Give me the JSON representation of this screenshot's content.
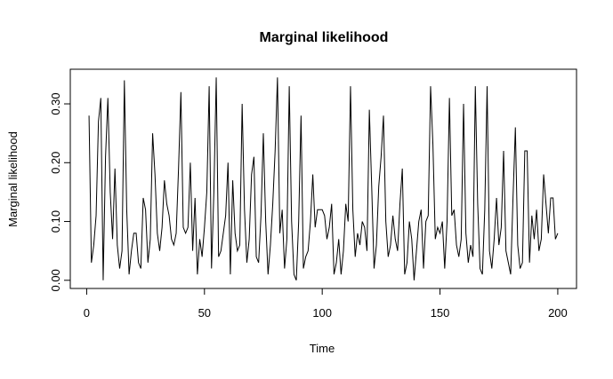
{
  "chart_data": {
    "type": "line",
    "title": "Marginal likelihood",
    "x_label": "Time",
    "y_label": "Marginal likelihood",
    "x": [
      1,
      2,
      3,
      4,
      5,
      6,
      7,
      8,
      9,
      10,
      11,
      12,
      13,
      14,
      15,
      16,
      17,
      18,
      19,
      20,
      21,
      22,
      23,
      24,
      25,
      26,
      27,
      28,
      29,
      30,
      31,
      32,
      33,
      34,
      35,
      36,
      37,
      38,
      39,
      40,
      41,
      42,
      43,
      44,
      45,
      46,
      47,
      48,
      49,
      50,
      51,
      52,
      53,
      54,
      55,
      56,
      57,
      58,
      59,
      60,
      61,
      62,
      63,
      64,
      65,
      66,
      67,
      68,
      69,
      70,
      71,
      72,
      73,
      74,
      75,
      76,
      77,
      78,
      79,
      80,
      81,
      82,
      83,
      84,
      85,
      86,
      87,
      88,
      89,
      90,
      91,
      92,
      93,
      94,
      95,
      96,
      97,
      98,
      99,
      100,
      101,
      102,
      103,
      104,
      105,
      106,
      107,
      108,
      109,
      110,
      111,
      112,
      113,
      114,
      115,
      116,
      117,
      118,
      119,
      120,
      121,
      122,
      123,
      124,
      125,
      126,
      127,
      128,
      129,
      130,
      131,
      132,
      133,
      134,
      135,
      136,
      137,
      138,
      139,
      140,
      141,
      142,
      143,
      144,
      145,
      146,
      147,
      148,
      149,
      150,
      151,
      152,
      153,
      154,
      155,
      156,
      157,
      158,
      159,
      160,
      161,
      162,
      163,
      164,
      165,
      166,
      167,
      168,
      169,
      170,
      171,
      172,
      173,
      174,
      175,
      176,
      177,
      178,
      179,
      180,
      181,
      182,
      183,
      184,
      185,
      186,
      187,
      188,
      189,
      190,
      191,
      192,
      193,
      194,
      195,
      196,
      197,
      198,
      199,
      200
    ],
    "values": [
      0.28,
      0.03,
      0.06,
      0.11,
      0.27,
      0.31,
      0.0,
      0.21,
      0.31,
      0.15,
      0.07,
      0.19,
      0.06,
      0.02,
      0.05,
      0.34,
      0.12,
      0.01,
      0.05,
      0.08,
      0.08,
      0.03,
      0.02,
      0.14,
      0.12,
      0.03,
      0.07,
      0.25,
      0.18,
      0.08,
      0.05,
      0.09,
      0.17,
      0.13,
      0.11,
      0.07,
      0.06,
      0.08,
      0.19,
      0.32,
      0.09,
      0.08,
      0.09,
      0.2,
      0.05,
      0.14,
      0.01,
      0.07,
      0.04,
      0.09,
      0.15,
      0.33,
      0.02,
      0.15,
      0.345,
      0.04,
      0.05,
      0.08,
      0.11,
      0.2,
      0.01,
      0.17,
      0.08,
      0.05,
      0.06,
      0.3,
      0.12,
      0.03,
      0.07,
      0.18,
      0.21,
      0.04,
      0.03,
      0.11,
      0.25,
      0.1,
      0.01,
      0.06,
      0.13,
      0.22,
      0.345,
      0.08,
      0.12,
      0.02,
      0.07,
      0.33,
      0.1,
      0.01,
      0.0,
      0.1,
      0.28,
      0.02,
      0.04,
      0.05,
      0.1,
      0.18,
      0.09,
      0.12,
      0.12,
      0.12,
      0.11,
      0.07,
      0.09,
      0.13,
      0.01,
      0.03,
      0.07,
      0.01,
      0.05,
      0.13,
      0.1,
      0.33,
      0.12,
      0.04,
      0.08,
      0.06,
      0.1,
      0.09,
      0.05,
      0.29,
      0.16,
      0.02,
      0.06,
      0.16,
      0.21,
      0.28,
      0.1,
      0.04,
      0.06,
      0.11,
      0.07,
      0.05,
      0.13,
      0.19,
      0.01,
      0.03,
      0.1,
      0.07,
      0.0,
      0.05,
      0.1,
      0.12,
      0.02,
      0.1,
      0.11,
      0.33,
      0.23,
      0.07,
      0.09,
      0.08,
      0.1,
      0.02,
      0.1,
      0.31,
      0.11,
      0.12,
      0.06,
      0.04,
      0.07,
      0.3,
      0.08,
      0.03,
      0.06,
      0.04,
      0.33,
      0.13,
      0.02,
      0.01,
      0.12,
      0.33,
      0.05,
      0.02,
      0.07,
      0.14,
      0.06,
      0.09,
      0.22,
      0.05,
      0.03,
      0.01,
      0.14,
      0.26,
      0.06,
      0.02,
      0.03,
      0.22,
      0.22,
      0.03,
      0.11,
      0.07,
      0.12,
      0.05,
      0.07,
      0.18,
      0.13,
      0.08,
      0.14,
      0.14,
      0.07,
      0.08
    ],
    "color": "#000000",
    "xlim": [
      -6.96,
      207.96
    ],
    "xticks": [
      0,
      50,
      100,
      150,
      200
    ],
    "ylim": [
      -0.0139,
      0.3589
    ],
    "yticks": [
      {
        "value": 0,
        "label": "0.00"
      },
      {
        "value": 0.1,
        "label": "0.10"
      },
      {
        "value": 0.2,
        "label": "0.20"
      },
      {
        "value": 0.3,
        "label": "0.30"
      }
    ]
  }
}
